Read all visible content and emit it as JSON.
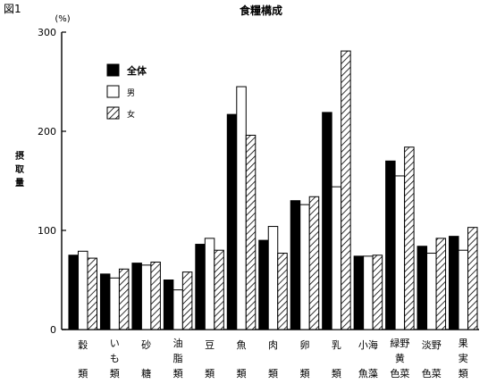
{
  "figure_label": "図1",
  "chart_data": {
    "type": "bar",
    "title": "食糧構成",
    "unit": "(%)",
    "ylabel": "摂取量",
    "ylim": [
      0,
      300
    ],
    "yticks": [
      0,
      100,
      200,
      300
    ],
    "grid": false,
    "legend_position": "top-left",
    "categories": [
      {
        "name": "穀類",
        "lines": [
          "穀",
          "類"
        ]
      },
      {
        "name": "いも類",
        "lines": [
          "い",
          "も",
          "類"
        ]
      },
      {
        "name": "砂糖",
        "lines": [
          "砂",
          "糖"
        ]
      },
      {
        "name": "油脂類",
        "lines": [
          "油",
          "脂",
          "類"
        ]
      },
      {
        "name": "豆類",
        "lines": [
          "豆",
          "類"
        ]
      },
      {
        "name": "魚類",
        "lines": [
          "魚",
          "類"
        ]
      },
      {
        "name": "肉類",
        "lines": [
          "肉",
          "類"
        ]
      },
      {
        "name": "卵類",
        "lines": [
          "卵",
          "類"
        ]
      },
      {
        "name": "乳類",
        "lines": [
          "乳",
          "類"
        ]
      },
      {
        "name": "小魚海藻",
        "lines": [
          "小海",
          "魚藻"
        ]
      },
      {
        "name": "緑黄色野菜",
        "lines": [
          "緑野",
          "黄",
          "色菜"
        ]
      },
      {
        "name": "淡色野菜",
        "lines": [
          "淡野",
          "色菜"
        ]
      },
      {
        "name": "果実類",
        "lines": [
          "果",
          "実",
          "類"
        ]
      }
    ],
    "series": [
      {
        "name": "全体",
        "style": "solid",
        "color": "#000000",
        "values": [
          75,
          56,
          67,
          50,
          86,
          217,
          90,
          130,
          219,
          74,
          170,
          84,
          94
        ]
      },
      {
        "name": "男",
        "style": "outline",
        "color": "#ffffff",
        "values": [
          79,
          52,
          65,
          40,
          92,
          245,
          104,
          126,
          144,
          74,
          155,
          77,
          80
        ]
      },
      {
        "name": "女",
        "style": "hatched",
        "color": "#ffffff",
        "values": [
          72,
          61,
          68,
          58,
          80,
          196,
          77,
          134,
          281,
          75,
          184,
          92,
          103
        ]
      }
    ]
  }
}
